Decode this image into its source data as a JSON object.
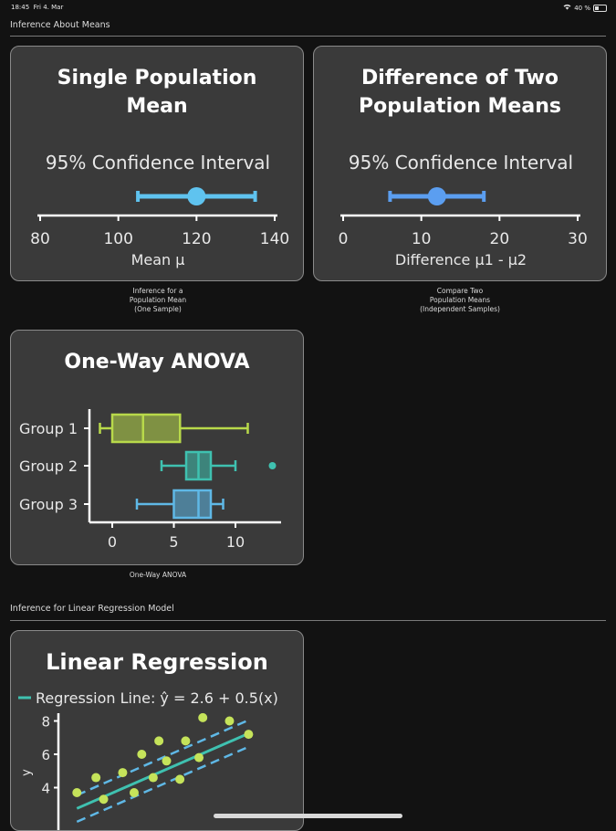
{
  "status_bar": {
    "time": "18:45",
    "date": "Fri 4. Mar",
    "battery": "40 %",
    "battery_level": 0.4
  },
  "sections": [
    {
      "title": "Inference About Means"
    },
    {
      "title": "Inference for Linear Regression Model"
    }
  ],
  "cards": {
    "single_mean": {
      "title_lines": [
        "Single Population",
        "Mean"
      ],
      "subtitle": "95% Confidence Interval",
      "axis_label": "Mean μ",
      "caption": [
        "Inference for a",
        "Population Mean",
        "(One Sample)"
      ]
    },
    "diff_means": {
      "title_lines": [
        "Difference of Two",
        "Population Means"
      ],
      "subtitle": "95% Confidence Interval",
      "axis_label": "Difference μ1 - μ2",
      "caption": [
        "Compare Two",
        "Population Means",
        "(Independent Samples)"
      ]
    },
    "anova": {
      "title": "One-Way ANOVA",
      "caption": [
        "One-Way ANOVA"
      ]
    },
    "regression": {
      "title": "Linear Regression",
      "legend": "Regression Line: ŷ = 2.6 + 0.5(x)",
      "ylabel": "y"
    }
  },
  "chart_data": [
    {
      "type": "scatter",
      "x_ticks": [
        80,
        100,
        120,
        140
      ],
      "xlim": [
        80,
        140
      ],
      "interval": {
        "estimate": 120,
        "lower": 105,
        "upper": 135
      },
      "color": "#5fc3ef"
    },
    {
      "type": "scatter",
      "x_ticks": [
        0,
        10,
        20,
        30
      ],
      "xlim": [
        0,
        30
      ],
      "interval": {
        "estimate": 12,
        "lower": 6,
        "upper": 18
      },
      "color": "#5b9ef0"
    },
    {
      "type": "box",
      "x_ticks": [
        0,
        5,
        10
      ],
      "xlim": [
        -2,
        13.5
      ],
      "groups": [
        {
          "name": "Group 1",
          "whisker_low": -1,
          "q1": 0,
          "median": 2.5,
          "q3": 5.5,
          "whisker_high": 11,
          "outliers": [],
          "color": "#b8d94a"
        },
        {
          "name": "Group 2",
          "whisker_low": 4,
          "q1": 6,
          "median": 7,
          "q3": 8,
          "whisker_high": 10,
          "outliers": [
            13
          ],
          "color": "#3fc1b0"
        },
        {
          "name": "Group 3",
          "whisker_low": 2,
          "q1": 5,
          "median": 7,
          "q3": 8,
          "whisker_high": 9,
          "outliers": [],
          "color": "#5fb8e6"
        }
      ]
    },
    {
      "type": "scatter",
      "y_ticks": [
        4,
        6,
        8
      ],
      "ylim": [
        2.6,
        8.8
      ],
      "xlim": [
        0,
        10
      ],
      "line": {
        "intercept": 2.6,
        "slope": 0.5,
        "color": "#3fc1b0"
      },
      "points": [
        [
          0.3,
          3.7
        ],
        [
          1.3,
          4.6
        ],
        [
          1.7,
          3.3
        ],
        [
          2.7,
          4.9
        ],
        [
          3.3,
          3.7
        ],
        [
          3.7,
          6.0
        ],
        [
          4.3,
          4.6
        ],
        [
          4.6,
          6.8
        ],
        [
          5.0,
          5.6
        ],
        [
          5.7,
          4.5
        ],
        [
          6.0,
          6.8
        ],
        [
          6.7,
          5.8
        ],
        [
          6.9,
          8.2
        ],
        [
          8.3,
          8.0
        ],
        [
          9.3,
          7.2
        ]
      ],
      "point_color": "#c5e35a"
    }
  ]
}
